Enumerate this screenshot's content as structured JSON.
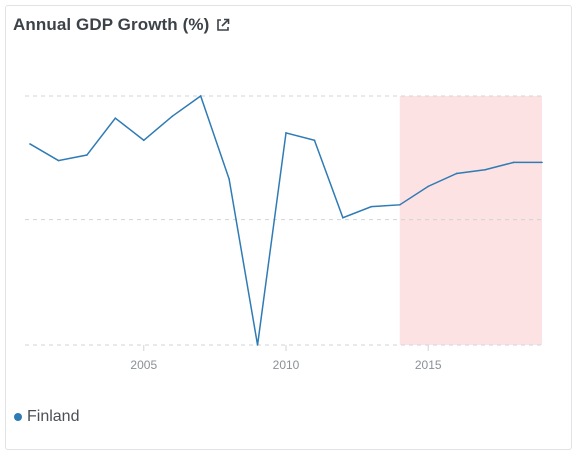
{
  "header": {
    "title": "Annual GDP Growth (%)",
    "external_link_icon": "external-link-icon"
  },
  "colors": {
    "series": "#2f7bb5",
    "highlight": "#fde2e3",
    "grid": "#cfd4d9",
    "tick_text": "#8a9197"
  },
  "chart_data": {
    "type": "line",
    "title": "Annual GDP Growth (%)",
    "xlabel": "",
    "ylabel": "",
    "x": [
      2001,
      2002,
      2003,
      2004,
      2005,
      2006,
      2007,
      2008,
      2009,
      2010,
      2011,
      2012,
      2013,
      2014,
      2015,
      2016,
      2017,
      2018,
      2019
    ],
    "series": [
      {
        "name": "Finland",
        "values": [
          2.6,
          1.7,
          2.0,
          4.0,
          2.8,
          4.1,
          5.2,
          0.7,
          -8.3,
          3.2,
          2.8,
          -1.4,
          -0.8,
          -0.7,
          0.3,
          1.0,
          1.2,
          1.6,
          1.6
        ]
      }
    ],
    "xticks": [
      "2005",
      "2010",
      "2015"
    ],
    "xtick_values": [
      2005,
      2010,
      2015
    ],
    "xlim": [
      2001,
      2019
    ],
    "ylim": [
      -8.3,
      5.2
    ],
    "grid_values": [
      5.2,
      -1.5,
      -8.3
    ],
    "grid": true,
    "highlight_range": [
      2014,
      2019
    ],
    "legend": {
      "position": "bottom-left",
      "entries": [
        "Finland"
      ]
    }
  }
}
